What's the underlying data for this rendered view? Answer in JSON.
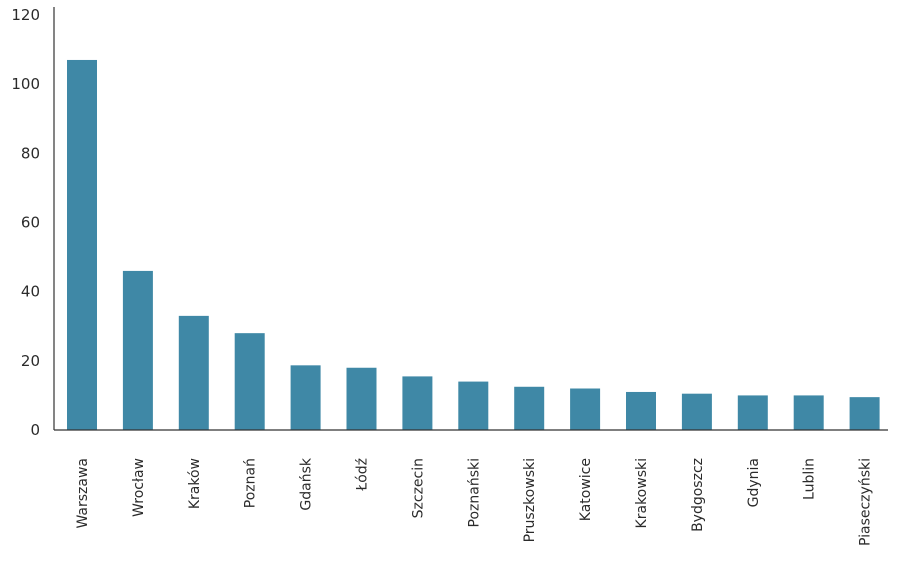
{
  "chart_data": {
    "type": "bar",
    "title": "",
    "xlabel": "",
    "ylabel": "",
    "ylim": [
      0,
      120
    ],
    "yticks": [
      0,
      20,
      40,
      60,
      80,
      100,
      120
    ],
    "grid": false,
    "legend": "none",
    "bar_color": "#3f88a6",
    "categories": [
      "Warszawa",
      "Wrocław",
      "Kraków",
      "Poznań",
      "Gdańsk",
      "Łódź",
      "Szczecin",
      "Poznański",
      "Pruszkowski",
      "Katowice",
      "Krakowski",
      "Bydgoszcz",
      "Gdynia",
      "Lublin",
      "Piaseczyński"
    ],
    "values": [
      107,
      46,
      33,
      28,
      18.7,
      18,
      15.5,
      14,
      12.5,
      12,
      11,
      10.5,
      10,
      10,
      9.5
    ]
  }
}
